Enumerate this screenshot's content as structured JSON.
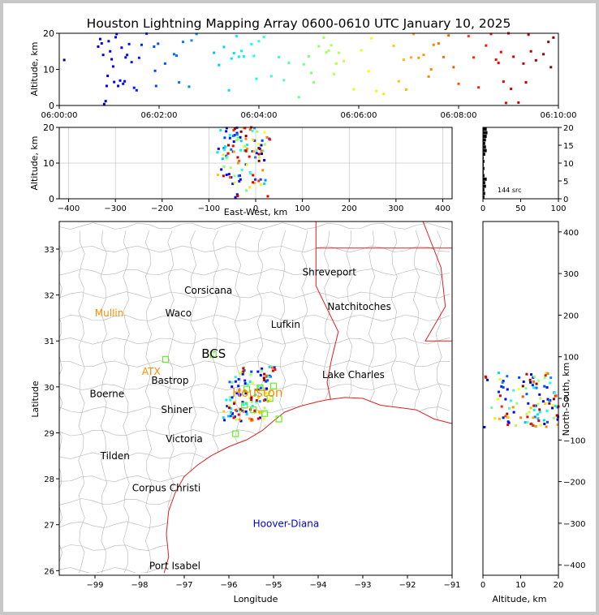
{
  "title": "Houston Lightning Mapping Array 0600-0610 UTC January 10, 2025",
  "colors": {
    "axis": "#000000",
    "grid": "#b0b0b0",
    "counties": "#b4b4b4",
    "coast": "#e02020",
    "orange_label": "#ff8c00",
    "station": "#66ee22",
    "blue_label": "#0000dd"
  },
  "chart_data": [
    {
      "name": "altitude-time",
      "type": "scatter",
      "ylabel": "Altitude, km",
      "ylim": [
        0,
        20
      ],
      "yticks": [
        "0",
        "10",
        "20"
      ],
      "xticks": [
        "06:00:00",
        "06:02:00",
        "06:04:00",
        "06:06:00",
        "06:08:00",
        "06:10:00"
      ],
      "xlim_minutes": [
        0,
        10
      ],
      "colormap": "time: dark blue to red",
      "points": [
        [
          0.1,
          12.6
        ],
        [
          0.78,
          16.3
        ],
        [
          0.82,
          18.4
        ],
        [
          0.85,
          17.2
        ],
        [
          0.88,
          14.0
        ],
        [
          0.9,
          0.4
        ],
        [
          0.93,
          1.2
        ],
        [
          0.95,
          5.4
        ],
        [
          0.97,
          8.2
        ],
        [
          0.99,
          17.8
        ],
        [
          1.02,
          15.0
        ],
        [
          1.05,
          12.8
        ],
        [
          1.08,
          10.8
        ],
        [
          1.1,
          6.5
        ],
        [
          1.13,
          18.9
        ],
        [
          1.15,
          19.8
        ],
        [
          1.18,
          5.4
        ],
        [
          1.22,
          6.9
        ],
        [
          1.25,
          16.0
        ],
        [
          1.28,
          6.0
        ],
        [
          1.31,
          6.7
        ],
        [
          1.33,
          13.3
        ],
        [
          1.36,
          14.0
        ],
        [
          1.4,
          17.0
        ],
        [
          1.45,
          12.0
        ],
        [
          1.5,
          4.9
        ],
        [
          1.55,
          4.2
        ],
        [
          1.6,
          13.2
        ],
        [
          1.65,
          16.8
        ],
        [
          1.75,
          19.9
        ],
        [
          1.9,
          16.3
        ],
        [
          1.92,
          9.6
        ],
        [
          1.94,
          5.4
        ],
        [
          1.98,
          17.1
        ],
        [
          2.12,
          11.6
        ],
        [
          2.3,
          14.2
        ],
        [
          2.35,
          13.8
        ],
        [
          2.4,
          6.4
        ],
        [
          2.48,
          17.6
        ],
        [
          2.6,
          5.2
        ],
        [
          2.65,
          18.0
        ],
        [
          2.75,
          19.8
        ],
        [
          3.1,
          14.6
        ],
        [
          3.2,
          11.2
        ],
        [
          3.3,
          16.2
        ],
        [
          3.4,
          4.2
        ],
        [
          3.45,
          13.0
        ],
        [
          3.5,
          14.5
        ],
        [
          3.55,
          19.2
        ],
        [
          3.6,
          13.5
        ],
        [
          3.65,
          15.1
        ],
        [
          3.7,
          13.6
        ],
        [
          3.85,
          17.0
        ],
        [
          3.9,
          13.7
        ],
        [
          3.95,
          7.4
        ],
        [
          4.0,
          17.8
        ],
        [
          4.1,
          19.0
        ],
        [
          4.25,
          8.1
        ],
        [
          4.4,
          13.4
        ],
        [
          4.5,
          7.0
        ],
        [
          4.6,
          11.8
        ],
        [
          4.8,
          2.3
        ],
        [
          4.9,
          11.4
        ],
        [
          5.0,
          13.6
        ],
        [
          5.05,
          9.0
        ],
        [
          5.1,
          6.4
        ],
        [
          5.2,
          16.4
        ],
        [
          5.3,
          18.8
        ],
        [
          5.35,
          14.7
        ],
        [
          5.4,
          15.2
        ],
        [
          5.45,
          16.7
        ],
        [
          5.5,
          8.7
        ],
        [
          5.55,
          11.6
        ],
        [
          5.6,
          14.6
        ],
        [
          5.7,
          12.3
        ],
        [
          5.9,
          4.5
        ],
        [
          6.05,
          15.3
        ],
        [
          6.2,
          9.5
        ],
        [
          6.25,
          18.6
        ],
        [
          6.35,
          4.0
        ],
        [
          6.5,
          3.2
        ],
        [
          6.7,
          16.5
        ],
        [
          6.8,
          6.7
        ],
        [
          6.9,
          12.7
        ],
        [
          6.95,
          4.4
        ],
        [
          7.05,
          13.3
        ],
        [
          7.1,
          19.8
        ],
        [
          7.2,
          13.2
        ],
        [
          7.3,
          14.0
        ],
        [
          7.4,
          8.0
        ],
        [
          7.45,
          10.0
        ],
        [
          7.5,
          16.8
        ],
        [
          7.6,
          17.2
        ],
        [
          7.7,
          13.4
        ],
        [
          7.8,
          19.4
        ],
        [
          7.9,
          10.6
        ],
        [
          8.0,
          6.0
        ],
        [
          8.2,
          19.2
        ],
        [
          8.3,
          13.3
        ],
        [
          8.4,
          5.0
        ],
        [
          8.55,
          16.6
        ],
        [
          8.65,
          19.8
        ],
        [
          8.75,
          12.7
        ],
        [
          8.8,
          11.8
        ],
        [
          8.85,
          14.8
        ],
        [
          8.9,
          6.6
        ],
        [
          8.95,
          0.7
        ],
        [
          9.0,
          20.0
        ],
        [
          9.05,
          4.6
        ],
        [
          9.1,
          13.5
        ],
        [
          9.2,
          0.8
        ],
        [
          9.3,
          11.6
        ],
        [
          9.35,
          6.4
        ],
        [
          9.4,
          19.6
        ],
        [
          9.45,
          15.0
        ],
        [
          9.55,
          12.5
        ],
        [
          9.7,
          14.2
        ],
        [
          9.8,
          17.6
        ],
        [
          9.85,
          10.6
        ],
        [
          9.9,
          18.8
        ]
      ]
    },
    {
      "name": "altitude-eastwest",
      "type": "scatter",
      "xlabel": "East-West, km",
      "ylabel": "Altitude, km",
      "xlim": [
        -420,
        420
      ],
      "ylim": [
        0,
        20
      ],
      "xticks": [
        "−400",
        "−300",
        "−200",
        "−100",
        "0",
        "100",
        "200",
        "300",
        "400"
      ],
      "yticks": [
        "0",
        "10",
        "20"
      ]
    },
    {
      "name": "histogram",
      "type": "bar",
      "xlim": [
        0,
        100
      ],
      "ylim": [
        0,
        20
      ],
      "xticks": [
        "0",
        "50",
        "100"
      ],
      "yticks": [
        "0",
        "5",
        "10",
        "15",
        "20"
      ],
      "annotation": "144 src",
      "bins": [
        [
          0.5,
          2
        ],
        [
          1.5,
          3
        ],
        [
          2.5,
          2
        ],
        [
          3.5,
          4
        ],
        [
          4.5,
          3
        ],
        [
          5.5,
          5
        ],
        [
          6.5,
          2
        ],
        [
          7.5,
          1
        ],
        [
          8.5,
          2
        ],
        [
          9.5,
          1
        ],
        [
          10.5,
          2
        ],
        [
          11.5,
          1
        ],
        [
          12.5,
          3
        ],
        [
          13.5,
          5
        ],
        [
          14.5,
          4
        ],
        [
          15.5,
          3
        ],
        [
          16.5,
          4
        ],
        [
          17.5,
          5
        ],
        [
          18.5,
          6
        ],
        [
          19.5,
          5
        ]
      ]
    },
    {
      "name": "plan-view-map",
      "type": "scatter",
      "xlabel": "Longitude",
      "ylabel": "Latitude",
      "xlim": [
        -99.8,
        -91.0
      ],
      "ylim": [
        25.9,
        33.6
      ],
      "xticks": [
        "−99",
        "−98",
        "−97",
        "−96",
        "−95",
        "−94",
        "−93",
        "−92",
        "−91"
      ],
      "yticks": [
        "26",
        "27",
        "28",
        "29",
        "30",
        "31",
        "32",
        "33"
      ],
      "cities": [
        {
          "name": "Shreveport",
          "lon": -93.75,
          "lat": 32.5
        },
        {
          "name": "Corsicana",
          "lon": -96.46,
          "lat": 32.1
        },
        {
          "name": "Natchitoches",
          "lon": -93.08,
          "lat": 31.75
        },
        {
          "name": "Mullin",
          "lon": -98.68,
          "lat": 31.6
        },
        {
          "name": "Waco",
          "lon": -97.13,
          "lat": 31.6
        },
        {
          "name": "Lufkin",
          "lon": -94.73,
          "lat": 31.36
        },
        {
          "name": "BCS",
          "lon": -96.34,
          "lat": 30.7
        },
        {
          "name": "ATX",
          "lon": -97.74,
          "lat": 30.33
        },
        {
          "name": "Lake Charles",
          "lon": -93.21,
          "lat": 30.26
        },
        {
          "name": "Bastrop",
          "lon": -97.32,
          "lat": 30.14
        },
        {
          "name": "Houston",
          "lon": -95.36,
          "lat": 29.86
        },
        {
          "name": "Boerne",
          "lon": -98.73,
          "lat": 29.85
        },
        {
          "name": "Shiner",
          "lon": -97.17,
          "lat": 29.5
        },
        {
          "name": "Victoria",
          "lon": -97.0,
          "lat": 28.87
        },
        {
          "name": "Tilden",
          "lon": -98.55,
          "lat": 28.5
        },
        {
          "name": "Corpus Christi",
          "lon": -97.4,
          "lat": 27.8
        },
        {
          "name": "Hoover-Diana",
          "lon": -94.72,
          "lat": 27.02
        },
        {
          "name": "Port Isabel",
          "lon": -97.21,
          "lat": 26.1
        }
      ],
      "stations": [
        [
          -97.42,
          30.6
        ],
        [
          -96.35,
          30.7
        ],
        [
          -95.6,
          29.95
        ],
        [
          -95.3,
          29.98
        ],
        [
          -95.0,
          30.02
        ],
        [
          -95.65,
          29.6
        ],
        [
          -95.45,
          29.5
        ],
        [
          -95.2,
          29.42
        ],
        [
          -95.85,
          28.98
        ],
        [
          -94.88,
          29.3
        ],
        [
          -95.08,
          29.75
        ]
      ]
    },
    {
      "name": "altitude-northsouth",
      "type": "scatter",
      "xlabel": "Altitude, km",
      "ylabel": "North-South, km",
      "xlim": [
        0,
        20
      ],
      "ylim": [
        -425,
        425
      ],
      "xticks": [
        "0",
        "10",
        "20"
      ],
      "yticks": [
        "−400",
        "−300",
        "−200",
        "−100",
        "0",
        "100",
        "200",
        "300",
        "400"
      ]
    }
  ]
}
